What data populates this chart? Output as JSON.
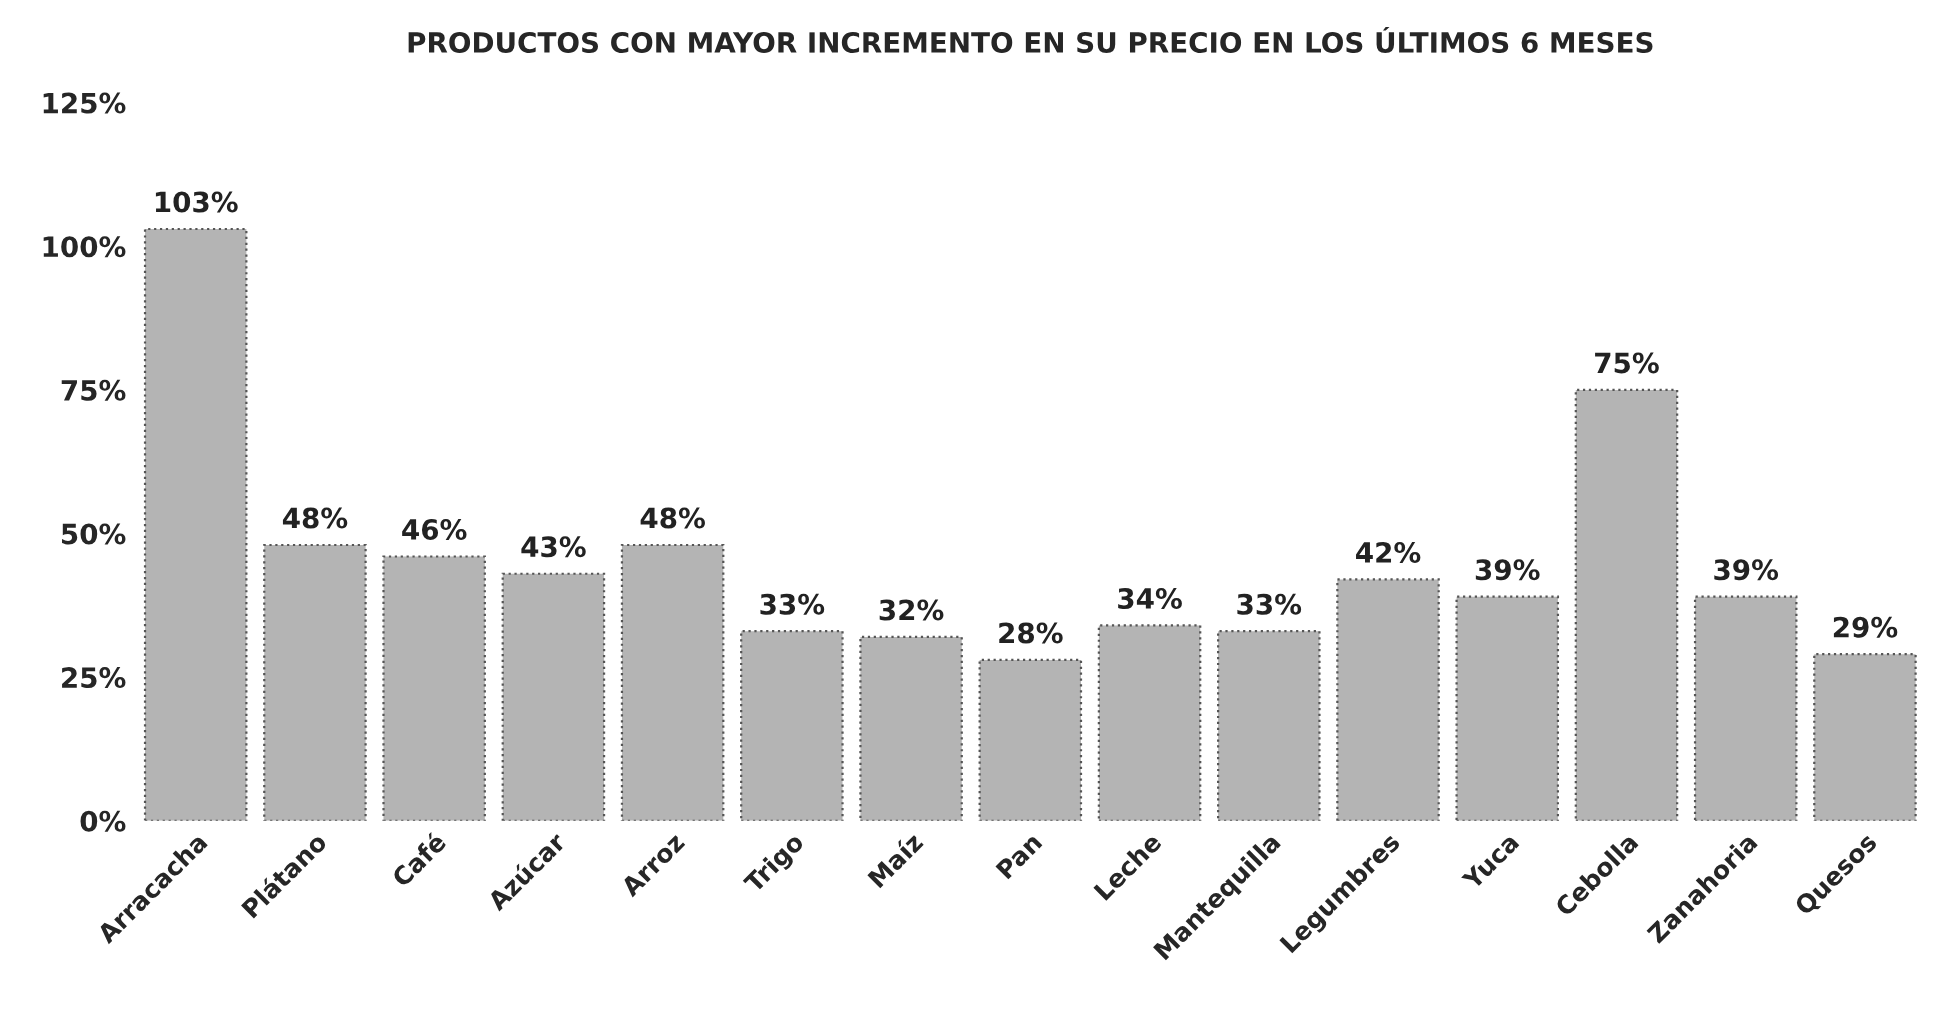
{
  "chart_data": {
    "type": "bar",
    "title": "PRODUCTOS CON MAYOR INCREMENTO EN SU PRECIO EN LOS ÚLTIMOS 6 MESES",
    "categories": [
      "Arracacha",
      "Plátano",
      "Café",
      "Azúcar",
      "Arroz",
      "Trigo",
      "Maíz",
      "Pan",
      "Leche",
      "Mantequilla",
      "Legumbres",
      "Yuca",
      "Cebolla",
      "Zanahoria",
      "Quesos"
    ],
    "values": [
      103,
      48,
      46,
      43,
      48,
      33,
      32,
      28,
      34,
      33,
      42,
      39,
      75,
      39,
      29
    ],
    "value_labels": [
      "103%",
      "48%",
      "46%",
      "43%",
      "48%",
      "33%",
      "32%",
      "28%",
      "34%",
      "33%",
      "42%",
      "39%",
      "75%",
      "39%",
      "29%"
    ],
    "color": "#b4b4b4",
    "ylim": [
      0,
      125
    ],
    "yticks": [
      {
        "value": 0,
        "label": "0%"
      },
      {
        "value": 25,
        "label": "25%"
      },
      {
        "value": 50,
        "label": "50%"
      },
      {
        "value": 75,
        "label": "75%"
      },
      {
        "value": 100,
        "label": "100%"
      },
      {
        "value": 125,
        "label": "125%"
      }
    ],
    "grid": false,
    "legend": false
  }
}
